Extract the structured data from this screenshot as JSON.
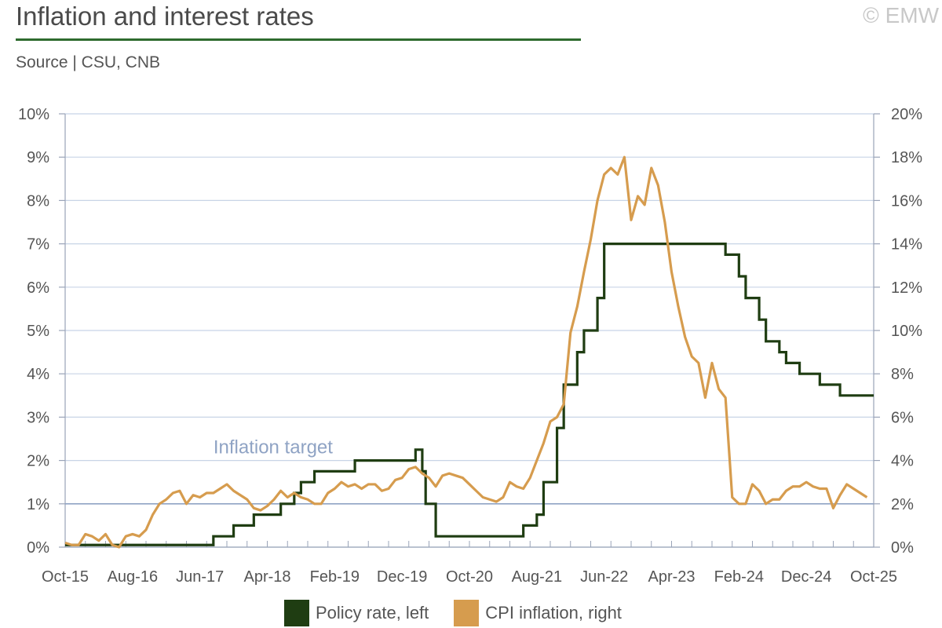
{
  "header": {
    "title": "Inflation and interest rates",
    "copyright": "© EMW",
    "source": "Source | CSU, CNB"
  },
  "colors": {
    "policy_rate": "#1f3d12",
    "cpi": "#d69c4e",
    "target_line": "#8fa3c4",
    "grid": "#c8d4e6",
    "axis": "#9aa4b8"
  },
  "chart_data": {
    "type": "line",
    "x_tick_labels": [
      "Oct-15",
      "Aug-16",
      "Jun-17",
      "Apr-18",
      "Feb-19",
      "Dec-19",
      "Oct-20",
      "Aug-21",
      "Jun-22",
      "Apr-23",
      "Feb-24",
      "Dec-24",
      "Oct-25"
    ],
    "y_left_ticks": [
      "0%",
      "1%",
      "2%",
      "3%",
      "4%",
      "5%",
      "6%",
      "7%",
      "8%",
      "9%",
      "10%"
    ],
    "y_right_ticks": [
      "0%",
      "2%",
      "4%",
      "6%",
      "8%",
      "10%",
      "12%",
      "14%",
      "16%",
      "18%",
      "20%"
    ],
    "ylim_left": [
      0,
      10
    ],
    "ylim_right": [
      0,
      20
    ],
    "annotation": "Inflation target",
    "inflation_target_left": 1,
    "series": [
      {
        "name": "Policy rate, left",
        "axis": "left",
        "style": "step",
        "points": [
          [
            "2015-10",
            0.05
          ],
          [
            "2017-08",
            0.25
          ],
          [
            "2017-11",
            0.5
          ],
          [
            "2018-02",
            0.75
          ],
          [
            "2018-06",
            1.0
          ],
          [
            "2018-08",
            1.25
          ],
          [
            "2018-09",
            1.5
          ],
          [
            "2018-11",
            1.75
          ],
          [
            "2019-05",
            2.0
          ],
          [
            "2020-02",
            2.25
          ],
          [
            "2020-03",
            1.75
          ],
          [
            "2020-03-15",
            1.0
          ],
          [
            "2020-05",
            0.25
          ],
          [
            "2021-06",
            0.5
          ],
          [
            "2021-08",
            0.75
          ],
          [
            "2021-09",
            1.5
          ],
          [
            "2021-11",
            2.75
          ],
          [
            "2021-12",
            3.75
          ],
          [
            "2022-02",
            4.5
          ],
          [
            "2022-03",
            5.0
          ],
          [
            "2022-05",
            5.75
          ],
          [
            "2022-06",
            7.0
          ],
          [
            "2023-12",
            6.75
          ],
          [
            "2024-02",
            6.25
          ],
          [
            "2024-03",
            5.75
          ],
          [
            "2024-05",
            5.25
          ],
          [
            "2024-06",
            4.75
          ],
          [
            "2024-08",
            4.5
          ],
          [
            "2024-09",
            4.25
          ],
          [
            "2024-11",
            4.0
          ],
          [
            "2025-02",
            3.75
          ],
          [
            "2025-05",
            3.5
          ],
          [
            "2025-10",
            3.5
          ]
        ]
      },
      {
        "name": "CPI inflation, right",
        "axis": "right",
        "style": "line",
        "points": [
          [
            "2015-10",
            0.2
          ],
          [
            "2015-11",
            0.1
          ],
          [
            "2015-12",
            0.1
          ],
          [
            "2016-01",
            0.6
          ],
          [
            "2016-02",
            0.5
          ],
          [
            "2016-03",
            0.3
          ],
          [
            "2016-04",
            0.6
          ],
          [
            "2016-05",
            0.1
          ],
          [
            "2016-06",
            0.0
          ],
          [
            "2016-07",
            0.5
          ],
          [
            "2016-08",
            0.6
          ],
          [
            "2016-09",
            0.5
          ],
          [
            "2016-10",
            0.8
          ],
          [
            "2016-11",
            1.5
          ],
          [
            "2016-12",
            2.0
          ],
          [
            "2017-01",
            2.2
          ],
          [
            "2017-02",
            2.5
          ],
          [
            "2017-03",
            2.6
          ],
          [
            "2017-04",
            2.0
          ],
          [
            "2017-05",
            2.4
          ],
          [
            "2017-06",
            2.3
          ],
          [
            "2017-07",
            2.5
          ],
          [
            "2017-08",
            2.5
          ],
          [
            "2017-09",
            2.7
          ],
          [
            "2017-10",
            2.9
          ],
          [
            "2017-11",
            2.6
          ],
          [
            "2017-12",
            2.4
          ],
          [
            "2018-01",
            2.2
          ],
          [
            "2018-02",
            1.8
          ],
          [
            "2018-03",
            1.7
          ],
          [
            "2018-04",
            1.9
          ],
          [
            "2018-05",
            2.2
          ],
          [
            "2018-06",
            2.6
          ],
          [
            "2018-07",
            2.3
          ],
          [
            "2018-08",
            2.5
          ],
          [
            "2018-09",
            2.3
          ],
          [
            "2018-10",
            2.2
          ],
          [
            "2018-11",
            2.0
          ],
          [
            "2018-12",
            2.0
          ],
          [
            "2019-01",
            2.5
          ],
          [
            "2019-02",
            2.7
          ],
          [
            "2019-03",
            3.0
          ],
          [
            "2019-04",
            2.8
          ],
          [
            "2019-05",
            2.9
          ],
          [
            "2019-06",
            2.7
          ],
          [
            "2019-07",
            2.9
          ],
          [
            "2019-08",
            2.9
          ],
          [
            "2019-09",
            2.6
          ],
          [
            "2019-10",
            2.7
          ],
          [
            "2019-11",
            3.1
          ],
          [
            "2019-12",
            3.2
          ],
          [
            "2020-01",
            3.6
          ],
          [
            "2020-02",
            3.7
          ],
          [
            "2020-03",
            3.4
          ],
          [
            "2020-04",
            3.2
          ],
          [
            "2020-05",
            2.8
          ],
          [
            "2020-06",
            3.3
          ],
          [
            "2020-07",
            3.4
          ],
          [
            "2020-08",
            3.3
          ],
          [
            "2020-09",
            3.2
          ],
          [
            "2020-10",
            2.9
          ],
          [
            "2020-11",
            2.6
          ],
          [
            "2020-12",
            2.3
          ],
          [
            "2021-01",
            2.2
          ],
          [
            "2021-02",
            2.1
          ],
          [
            "2021-03",
            2.3
          ],
          [
            "2021-04",
            3.0
          ],
          [
            "2021-05",
            2.8
          ],
          [
            "2021-06",
            2.7
          ],
          [
            "2021-07",
            3.2
          ],
          [
            "2021-08",
            4.0
          ],
          [
            "2021-09",
            4.8
          ],
          [
            "2021-10",
            5.8
          ],
          [
            "2021-11",
            6.0
          ],
          [
            "2021-12",
            6.6
          ],
          [
            "2022-01",
            9.9
          ],
          [
            "2022-02",
            11.1
          ],
          [
            "2022-03",
            12.7
          ],
          [
            "2022-04",
            14.2
          ],
          [
            "2022-05",
            16.0
          ],
          [
            "2022-06",
            17.2
          ],
          [
            "2022-07",
            17.5
          ],
          [
            "2022-08",
            17.2
          ],
          [
            "2022-09",
            18.0
          ],
          [
            "2022-10",
            15.1
          ],
          [
            "2022-11",
            16.2
          ],
          [
            "2022-12",
            15.8
          ],
          [
            "2023-01",
            17.5
          ],
          [
            "2023-02",
            16.7
          ],
          [
            "2023-03",
            15.0
          ],
          [
            "2023-04",
            12.7
          ],
          [
            "2023-05",
            11.1
          ],
          [
            "2023-06",
            9.7
          ],
          [
            "2023-07",
            8.8
          ],
          [
            "2023-08",
            8.5
          ],
          [
            "2023-09",
            6.9
          ],
          [
            "2023-10",
            8.5
          ],
          [
            "2023-11",
            7.3
          ],
          [
            "2023-12",
            6.9
          ],
          [
            "2024-01",
            2.3
          ],
          [
            "2024-02",
            2.0
          ],
          [
            "2024-03",
            2.0
          ],
          [
            "2024-04",
            2.9
          ],
          [
            "2024-05",
            2.6
          ],
          [
            "2024-06",
            2.0
          ],
          [
            "2024-07",
            2.2
          ],
          [
            "2024-08",
            2.2
          ],
          [
            "2024-09",
            2.6
          ],
          [
            "2024-10",
            2.8
          ],
          [
            "2024-11",
            2.8
          ],
          [
            "2024-12",
            3.0
          ],
          [
            "2025-01",
            2.8
          ],
          [
            "2025-02",
            2.7
          ],
          [
            "2025-03",
            2.7
          ],
          [
            "2025-04",
            1.8
          ],
          [
            "2025-05",
            2.4
          ],
          [
            "2025-06",
            2.9
          ],
          [
            "2025-07",
            2.7
          ],
          [
            "2025-08",
            2.5
          ],
          [
            "2025-09",
            2.3
          ]
        ]
      }
    ],
    "grid": true,
    "legend_position": "bottom"
  },
  "legend": {
    "policy_label": "Policy rate, left",
    "cpi_label": "CPI inflation, right"
  }
}
